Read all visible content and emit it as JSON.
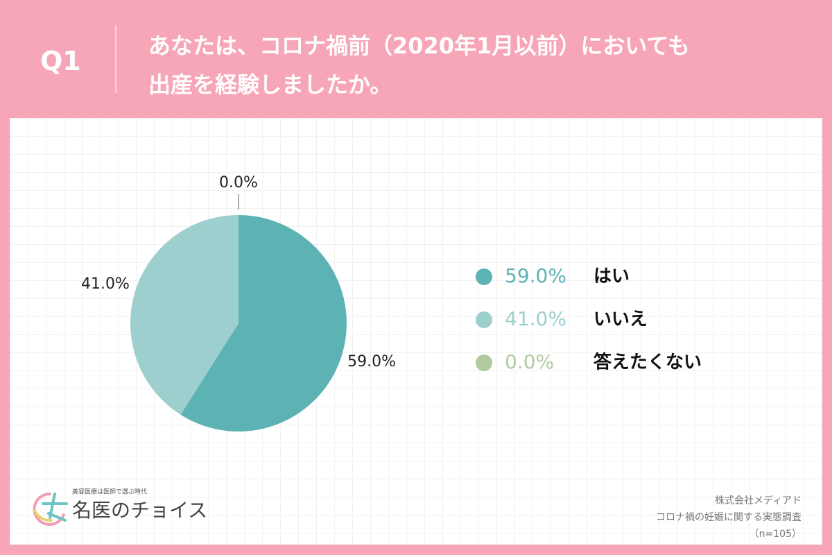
{
  "header": {
    "label": "Q1"
  },
  "chart_data": {
    "type": "pie",
    "title": [
      "あなたは、コロナ禍前（2020年1月以前）においても",
      "出産を経験しましたか。"
    ],
    "categories": [
      "はい",
      "いいえ",
      "答えたくない"
    ],
    "values": [
      59.0,
      41.0,
      0.0
    ],
    "value_labels": [
      "59.0%",
      "41.0%",
      "0.0%"
    ],
    "colors": [
      "#5db3b4",
      "#9ecfcf",
      "#b0cba0"
    ],
    "legend": "right"
  },
  "footer": {
    "logo_tagline": "美容医療は医師で選ぶ時代",
    "logo_name": "名医のチョイス",
    "source": [
      "株式会社メディアド",
      "コロナ禍の妊娠に関する実態調査",
      "（n=105）"
    ]
  }
}
